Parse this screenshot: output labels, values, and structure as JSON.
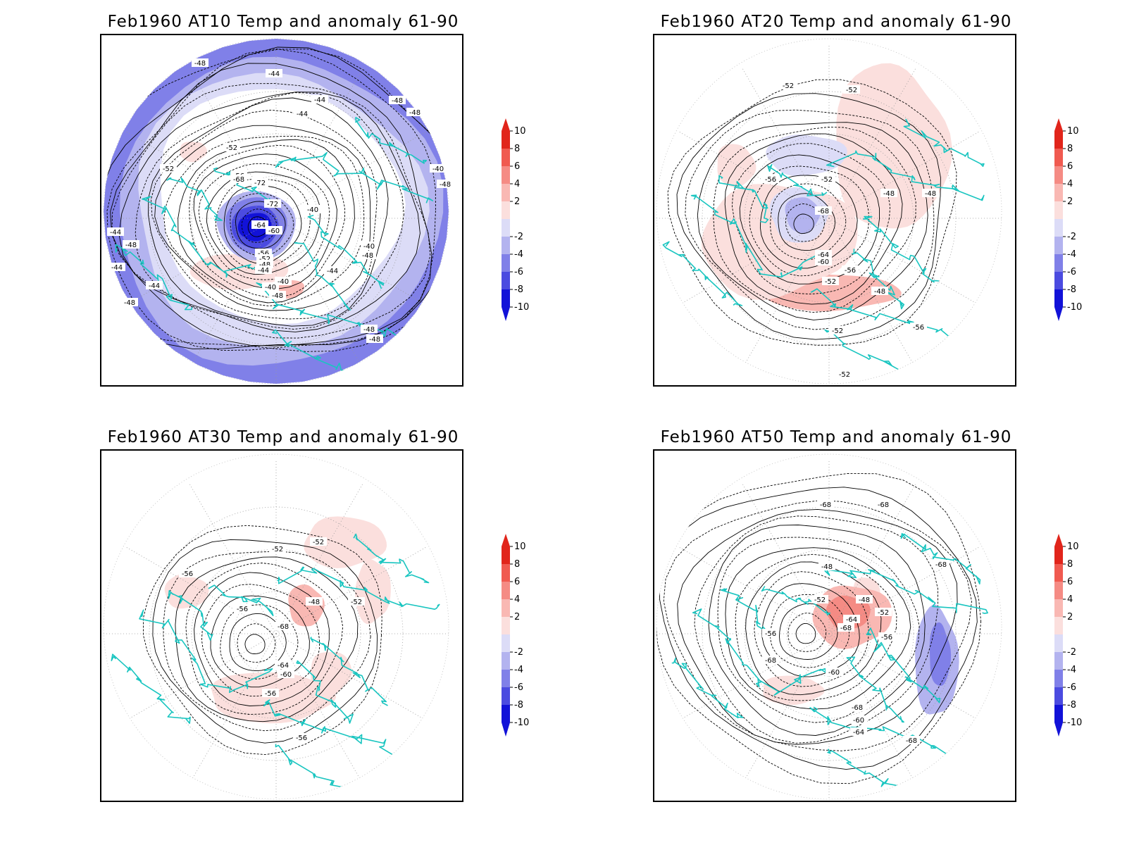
{
  "panels": [
    {
      "id": "p1",
      "title": "Feb1960 AT10 Temp and anomaly 61-90",
      "contour_labels": [
        "-48",
        "-44",
        "-44",
        "-44",
        "-48",
        "-48",
        "-40",
        "-48",
        "-52",
        "-52",
        "-56",
        "-68",
        "-72",
        "-72",
        "-64",
        "-60",
        "-56",
        "-52",
        "-48",
        "-44",
        "-40",
        "-40",
        "-40",
        "-40",
        "-48",
        "-44",
        "-48",
        "-44",
        "-48",
        "-44",
        "-44",
        "-48",
        "-48",
        "-48"
      ],
      "fill_preset": "blue_ring"
    },
    {
      "id": "p2",
      "title": "Feb1960 AT20 Temp and anomaly 61-90",
      "contour_labels": [
        "-52",
        "-52",
        "-56",
        "-52",
        "-48",
        "-48",
        "-68",
        "-64",
        "-60",
        "-56",
        "-52",
        "-48",
        "-52",
        "-56",
        "-52"
      ],
      "fill_preset": "mixed"
    },
    {
      "id": "p3",
      "title": "Feb1960 AT30 Temp and anomaly 61-90",
      "contour_labels": [
        "-52",
        "-52",
        "-56",
        "-56",
        "-48",
        "-52",
        "-68",
        "-64",
        "-60",
        "-56",
        "-56"
      ],
      "fill_preset": "mild"
    },
    {
      "id": "p4",
      "title": "Feb1960 AT50 Temp and anomaly 61-90",
      "contour_labels": [
        "-68",
        "-68",
        "-68",
        "-48",
        "-52",
        "-48",
        "-52",
        "-64",
        "-68",
        "-56",
        "-56",
        "-60",
        "-68",
        "-60",
        "-64",
        "-68",
        "-68"
      ],
      "fill_preset": "red_center"
    }
  ],
  "colorbar": {
    "labels": [
      "10",
      "8",
      "6",
      "4",
      "2",
      "-2",
      "-4",
      "-6",
      "-8",
      "-10"
    ],
    "colors": [
      "#e1251b",
      "#f05a50",
      "#f58b84",
      "#f9b8b3",
      "#fbdfdd",
      "#ffffff",
      "#dcdcf7",
      "#b3b3ef",
      "#8080e8",
      "#4b4be0",
      "#1212d8"
    ]
  },
  "colors": {
    "coast": "#19c5c0",
    "contour": "#000000",
    "grid": "#999999"
  }
}
